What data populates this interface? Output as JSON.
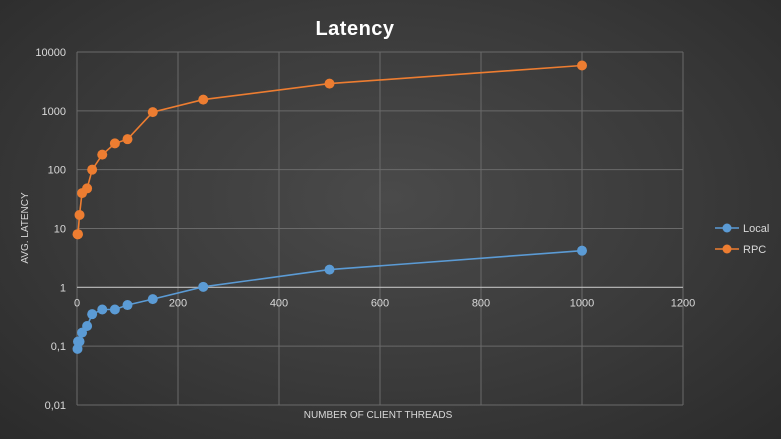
{
  "chart_data": {
    "type": "scatter",
    "title": "Latency",
    "xlabel": "NUMBER OF CLIENT THREADS",
    "ylabel": "AVG. LATENCY",
    "xlim": [
      0,
      1200
    ],
    "ylim": [
      0.01,
      10000
    ],
    "yscale": "log",
    "x_ticks": [
      "0",
      "200",
      "400",
      "600",
      "800",
      "1000",
      "1200"
    ],
    "y_ticks": [
      "0,01",
      "0,1",
      "1",
      "10",
      "100",
      "1000",
      "10000"
    ],
    "grid": true,
    "legend_position": "right",
    "series": [
      {
        "name": "Local",
        "color": "#5b9bd5",
        "x": [
          1,
          2,
          5,
          10,
          20,
          30,
          50,
          75,
          100,
          150,
          250,
          500,
          1000
        ],
        "y": [
          0.09,
          0.12,
          0.12,
          0.17,
          0.22,
          0.35,
          0.42,
          0.42,
          0.5,
          0.63,
          1.02,
          2.0,
          4.2
        ]
      },
      {
        "name": "RPC",
        "color": "#ed7d31",
        "x": [
          1,
          2,
          5,
          10,
          20,
          30,
          50,
          75,
          100,
          150,
          250,
          500,
          1000
        ],
        "y": [
          8,
          8,
          17,
          40,
          48,
          100,
          180,
          280,
          330,
          950,
          1550,
          2900,
          5900
        ]
      }
    ]
  }
}
